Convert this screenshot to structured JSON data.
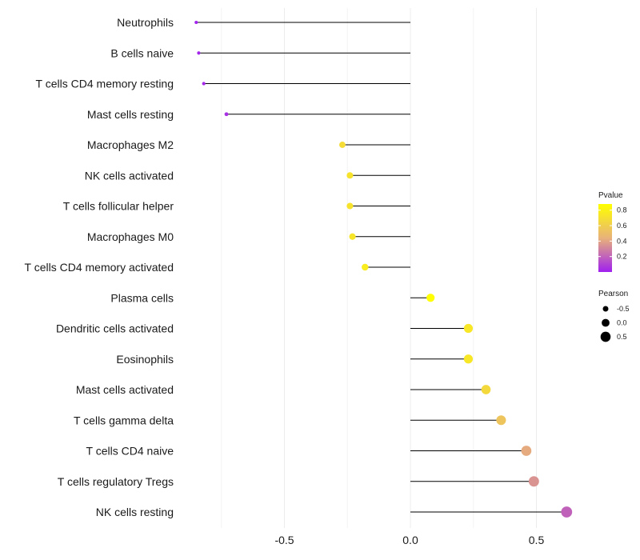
{
  "chart_data": {
    "type": "lollipop",
    "title": "",
    "xlabel": "",
    "ylabel": "",
    "xlim": [
      -0.86,
      0.66
    ],
    "xticks": [
      -0.5,
      0.0,
      0.5
    ],
    "xtick_labels": [
      "-0.5",
      "0.0",
      "0.5"
    ],
    "grid": true,
    "legend_position": "right",
    "categories": [
      "Neutrophils",
      "B cells naive",
      "T cells CD4 memory resting",
      "Mast cells resting",
      "Macrophages M2",
      "NK cells activated",
      "T cells follicular helper",
      "Macrophages M0",
      "T cells CD4 memory activated",
      "Plasma cells",
      "Dendritic cells activated",
      "Eosinophils",
      "Mast cells activated",
      "T cells gamma delta",
      "T cells CD4 naive",
      "T cells regulatory  Tregs",
      "NK cells resting"
    ],
    "pearson": [
      -0.85,
      -0.84,
      -0.82,
      -0.73,
      -0.27,
      -0.24,
      -0.24,
      -0.23,
      -0.18,
      0.08,
      0.23,
      0.23,
      0.3,
      0.36,
      0.46,
      0.49,
      0.62
    ],
    "pvalue": [
      0.01,
      0.02,
      0.03,
      0.05,
      0.68,
      0.72,
      0.72,
      0.73,
      0.77,
      0.88,
      0.74,
      0.74,
      0.66,
      0.55,
      0.42,
      0.35,
      0.2
    ],
    "color_legend": {
      "title": "Pvalue",
      "ticks": [
        0.8,
        0.6,
        0.4,
        0.2
      ],
      "tick_labels": [
        "0.8",
        "0.6",
        "0.4",
        "0.2"
      ],
      "range": [
        0.0,
        0.88
      ],
      "colors": {
        "low": "#a020f0",
        "mid": "#e8b27a",
        "high": "#ffff00"
      }
    },
    "size_legend": {
      "title": "Pearson",
      "values": [
        -0.5,
        0.0,
        0.5
      ],
      "labels": [
        "-0.5",
        "0.0",
        "0.5"
      ]
    }
  }
}
